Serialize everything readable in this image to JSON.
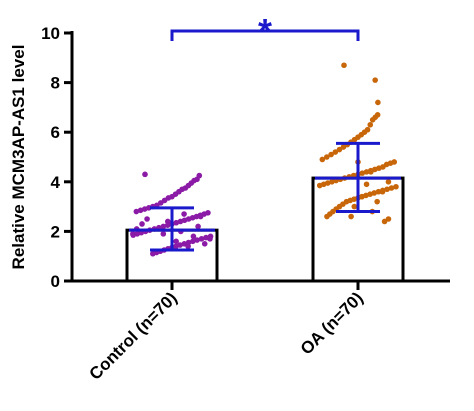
{
  "chart_data": {
    "type": "bar",
    "ylabel": "Relative MCM3AP-AS1 level",
    "ylim": [
      0,
      10
    ],
    "yticks": [
      "0",
      "2",
      "4",
      "6",
      "8",
      "10"
    ],
    "categories": [
      "Control (n=70)",
      "OA (n=70)"
    ],
    "series": [
      {
        "values": [
          2.05,
          4.15
        ],
        "error_low": [
          1.25,
          2.8
        ],
        "error_high": [
          2.95,
          5.55
        ],
        "point_color": "#8b1aa6",
        "points": [
          [
            4.3,
            4.25,
            4.1,
            4.05,
            3.95,
            3.85,
            3.75,
            3.7,
            3.6,
            3.5,
            3.4,
            3.35,
            3.25,
            3.15,
            3.05,
            3.0,
            2.95,
            2.9,
            2.85,
            2.8,
            2.75,
            2.7,
            2.65,
            2.6,
            2.55,
            2.5,
            2.45,
            2.4,
            2.35,
            2.3,
            2.25,
            2.2,
            2.15,
            2.1,
            2.05,
            2.0,
            1.95,
            1.9,
            1.85,
            1.8,
            1.75,
            1.7,
            1.65,
            1.6,
            1.55,
            1.5,
            1.45,
            1.4,
            1.35,
            1.3,
            1.25,
            1.2,
            1.15,
            1.1,
            2.5,
            2.3,
            2.1,
            1.9,
            1.7,
            1.5,
            2.6,
            2.2,
            1.8,
            1.4,
            2.7,
            2.0,
            1.6,
            1.3,
            2.4,
            1.9
          ],
          [
            8.7,
            8.1,
            7.2,
            6.7,
            6.6,
            6.5,
            6.3,
            6.1,
            6.0,
            5.9,
            5.8,
            5.7,
            5.6,
            5.5,
            5.4,
            5.3,
            5.2,
            5.1,
            5.0,
            4.9,
            4.8,
            4.75,
            4.7,
            4.6,
            4.55,
            4.5,
            4.45,
            4.4,
            4.35,
            4.3,
            4.25,
            4.2,
            4.15,
            4.1,
            4.05,
            4.0,
            3.95,
            3.9,
            3.85,
            3.8,
            3.75,
            3.7,
            3.65,
            3.6,
            3.55,
            3.5,
            3.45,
            3.4,
            3.35,
            3.3,
            3.25,
            3.2,
            3.1,
            3.0,
            2.9,
            2.8,
            2.7,
            2.6,
            2.5,
            2.4,
            4.0,
            3.6,
            3.2,
            2.8,
            4.4,
            3.9,
            3.4,
            4.8,
            3.0,
            2.6
          ]
        ]
      }
    ],
    "significance": {
      "label": "*",
      "color": "#1a1acc"
    },
    "colors": {
      "control_points": "#8b1aa6",
      "oa_points": "#c8660a",
      "error_bars": "#1a1acc",
      "bracket": "#1a1acc",
      "bar_outline": "#000000",
      "bar_fill": "#ffffff"
    },
    "grid": false,
    "legend": "none"
  }
}
